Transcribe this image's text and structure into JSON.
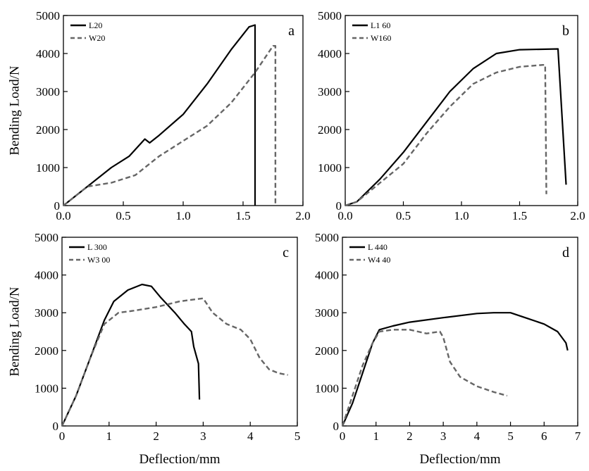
{
  "ylabel": "Bending Load/N",
  "xlabel": "Deflection/mm",
  "chart_data": [
    {
      "type": "line",
      "panel": "a",
      "xlabel": "",
      "ylabel": "Bending Load/N",
      "xlim": [
        0,
        2.0
      ],
      "ylim": [
        0,
        5000
      ],
      "x_ticks": [
        "0.0",
        "0.5",
        "1.0",
        "1.5",
        "2.0"
      ],
      "y_ticks": [
        "0",
        "1000",
        "2000",
        "3000",
        "4000",
        "5000"
      ],
      "legend_position": "top-left",
      "series": [
        {
          "name": "L20",
          "color": "#000000",
          "dash": "solid",
          "points": [
            [
              0,
              0
            ],
            [
              0.2,
              500
            ],
            [
              0.4,
              1000
            ],
            [
              0.55,
              1300
            ],
            [
              0.68,
              1750
            ],
            [
              0.72,
              1650
            ],
            [
              0.8,
              1850
            ],
            [
              1.0,
              2400
            ],
            [
              1.2,
              3200
            ],
            [
              1.4,
              4100
            ],
            [
              1.55,
              4700
            ],
            [
              1.6,
              4750
            ],
            [
              1.6,
              0
            ]
          ]
        },
        {
          "name": "W20",
          "color": "#666666",
          "dash": "dashed",
          "points": [
            [
              0,
              0
            ],
            [
              0.2,
              500
            ],
            [
              0.4,
              600
            ],
            [
              0.6,
              800
            ],
            [
              0.8,
              1300
            ],
            [
              1.0,
              1700
            ],
            [
              1.2,
              2100
            ],
            [
              1.4,
              2700
            ],
            [
              1.6,
              3500
            ],
            [
              1.75,
              4200
            ],
            [
              1.77,
              4200
            ],
            [
              1.77,
              0
            ]
          ]
        }
      ]
    },
    {
      "type": "line",
      "panel": "b",
      "xlabel": "",
      "ylabel": "",
      "xlim": [
        0,
        2.0
      ],
      "ylim": [
        0,
        5000
      ],
      "x_ticks": [
        "0.0",
        "0.5",
        "1.0",
        "1.5",
        "2.0"
      ],
      "y_ticks": [
        "0",
        "1000",
        "2000",
        "3000",
        "4000",
        "5000"
      ],
      "legend_position": "top-left",
      "series": [
        {
          "name": "L1 60",
          "color": "#000000",
          "dash": "solid",
          "points": [
            [
              0,
              0
            ],
            [
              0.1,
              100
            ],
            [
              0.3,
              700
            ],
            [
              0.5,
              1400
            ],
            [
              0.7,
              2200
            ],
            [
              0.9,
              3000
            ],
            [
              1.1,
              3600
            ],
            [
              1.3,
              4000
            ],
            [
              1.5,
              4100
            ],
            [
              1.83,
              4120
            ],
            [
              1.9,
              550
            ]
          ]
        },
        {
          "name": "W160",
          "color": "#666666",
          "dash": "dashed",
          "points": [
            [
              0,
              0
            ],
            [
              0.1,
              100
            ],
            [
              0.3,
              600
            ],
            [
              0.5,
              1100
            ],
            [
              0.7,
              1900
            ],
            [
              0.9,
              2600
            ],
            [
              1.1,
              3200
            ],
            [
              1.3,
              3500
            ],
            [
              1.5,
              3650
            ],
            [
              1.7,
              3700
            ],
            [
              1.72,
              3700
            ],
            [
              1.73,
              300
            ]
          ]
        }
      ]
    },
    {
      "type": "line",
      "panel": "c",
      "xlabel": "Deflection/mm",
      "ylabel": "Bending Load/N",
      "xlim": [
        0,
        5
      ],
      "ylim": [
        0,
        5000
      ],
      "x_ticks": [
        "0",
        "1",
        "2",
        "3",
        "4",
        "5"
      ],
      "y_ticks": [
        "0",
        "1000",
        "2000",
        "3000",
        "4000",
        "5000"
      ],
      "legend_position": "top-left",
      "series": [
        {
          "name": "L 300",
          "color": "#000000",
          "dash": "solid",
          "points": [
            [
              0,
              0
            ],
            [
              0.3,
              800
            ],
            [
              0.6,
              1800
            ],
            [
              0.9,
              2800
            ],
            [
              1.1,
              3300
            ],
            [
              1.4,
              3600
            ],
            [
              1.7,
              3750
            ],
            [
              1.9,
              3700
            ],
            [
              2.1,
              3400
            ],
            [
              2.4,
              3000
            ],
            [
              2.6,
              2700
            ],
            [
              2.75,
              2500
            ],
            [
              2.8,
              2100
            ],
            [
              2.9,
              1650
            ],
            [
              2.92,
              700
            ]
          ]
        },
        {
          "name": "W3 00",
          "color": "#666666",
          "dash": "dashed",
          "points": [
            [
              0,
              0
            ],
            [
              0.3,
              800
            ],
            [
              0.6,
              1800
            ],
            [
              0.9,
              2700
            ],
            [
              1.2,
              3000
            ],
            [
              1.5,
              3050
            ],
            [
              2.0,
              3150
            ],
            [
              2.5,
              3300
            ],
            [
              2.8,
              3350
            ],
            [
              3.0,
              3380
            ],
            [
              3.2,
              3000
            ],
            [
              3.5,
              2700
            ],
            [
              3.8,
              2550
            ],
            [
              4.0,
              2300
            ],
            [
              4.2,
              1800
            ],
            [
              4.4,
              1500
            ],
            [
              4.6,
              1400
            ],
            [
              4.8,
              1350
            ]
          ]
        }
      ]
    },
    {
      "type": "line",
      "panel": "d",
      "xlabel": "Deflection/mm",
      "ylabel": "",
      "xlim": [
        0,
        7
      ],
      "ylim": [
        0,
        5000
      ],
      "x_ticks": [
        "0",
        "1",
        "2",
        "3",
        "4",
        "5",
        "6",
        "7"
      ],
      "y_ticks": [
        "0",
        "1000",
        "2000",
        "3000",
        "4000",
        "5000"
      ],
      "legend_position": "top-left",
      "series": [
        {
          "name": "L 440",
          "color": "#000000",
          "dash": "solid",
          "points": [
            [
              0,
              0
            ],
            [
              0.3,
              600
            ],
            [
              0.6,
              1400
            ],
            [
              0.9,
              2200
            ],
            [
              1.1,
              2550
            ],
            [
              1.5,
              2650
            ],
            [
              2.0,
              2750
            ],
            [
              3.0,
              2870
            ],
            [
              4.0,
              2980
            ],
            [
              4.5,
              3000
            ],
            [
              5.0,
              3000
            ],
            [
              5.5,
              2850
            ],
            [
              6.0,
              2700
            ],
            [
              6.4,
              2500
            ],
            [
              6.65,
              2200
            ],
            [
              6.7,
              2000
            ]
          ]
        },
        {
          "name": "W4 40",
          "color": "#666666",
          "dash": "dashed",
          "points": [
            [
              0,
              0
            ],
            [
              0.3,
              800
            ],
            [
              0.6,
              1600
            ],
            [
              0.9,
              2200
            ],
            [
              1.1,
              2500
            ],
            [
              1.5,
              2550
            ],
            [
              2.0,
              2550
            ],
            [
              2.5,
              2450
            ],
            [
              2.9,
              2500
            ],
            [
              3.0,
              2350
            ],
            [
              3.2,
              1700
            ],
            [
              3.5,
              1300
            ],
            [
              4.0,
              1050
            ],
            [
              4.5,
              900
            ],
            [
              4.9,
              800
            ]
          ]
        }
      ]
    }
  ]
}
